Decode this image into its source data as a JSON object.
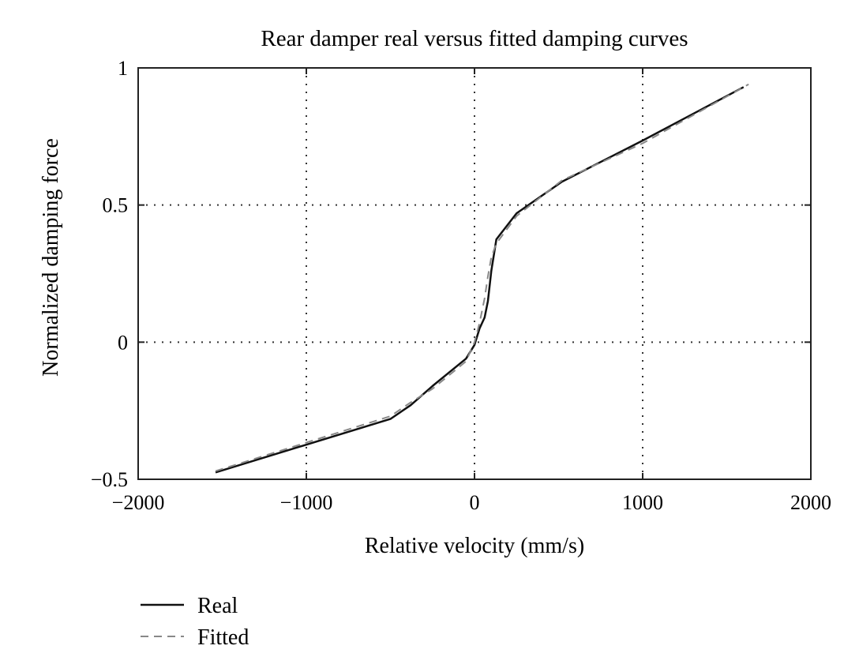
{
  "chart_data": {
    "type": "line",
    "title": "Rear damper real versus fitted damping curves",
    "xlabel": "Relative velocity (mm/s)",
    "ylabel": "Normalized damping force",
    "xlim": [
      -2000,
      2000
    ],
    "ylim": [
      -0.5,
      1
    ],
    "xticks": [
      -2000,
      -1000,
      0,
      1000,
      2000
    ],
    "xtick_labels": [
      "−2000",
      "−1000",
      "0",
      "1000",
      "2000"
    ],
    "yticks": [
      -0.5,
      0,
      0.5,
      1
    ],
    "ytick_labels": [
      "−0.5",
      "0",
      "0.5",
      "1"
    ],
    "grid": "dotted, at inner ticks",
    "legend_position": "below-left, outside plot",
    "series": [
      {
        "name": "Real",
        "style": "solid",
        "color": "#111111",
        "x": [
          -1540,
          -500,
          -380,
          -250,
          -50,
          0,
          30,
          60,
          80,
          100,
          130,
          250,
          520,
          1000,
          1600
        ],
        "y": [
          -0.475,
          -0.28,
          -0.23,
          -0.16,
          -0.06,
          -0.01,
          0.05,
          0.09,
          0.15,
          0.26,
          0.375,
          0.47,
          0.585,
          0.735,
          0.93
        ]
      },
      {
        "name": "Fitted",
        "style": "dashed",
        "color": "#888888",
        "x": [
          -1540,
          -500,
          -380,
          -250,
          -50,
          0,
          30,
          60,
          80,
          100,
          130,
          250,
          520,
          1000,
          1630
        ],
        "y": [
          -0.47,
          -0.27,
          -0.22,
          -0.17,
          -0.07,
          0.0,
          0.07,
          0.16,
          0.24,
          0.31,
          0.36,
          0.46,
          0.59,
          0.725,
          0.94
        ]
      }
    ]
  }
}
